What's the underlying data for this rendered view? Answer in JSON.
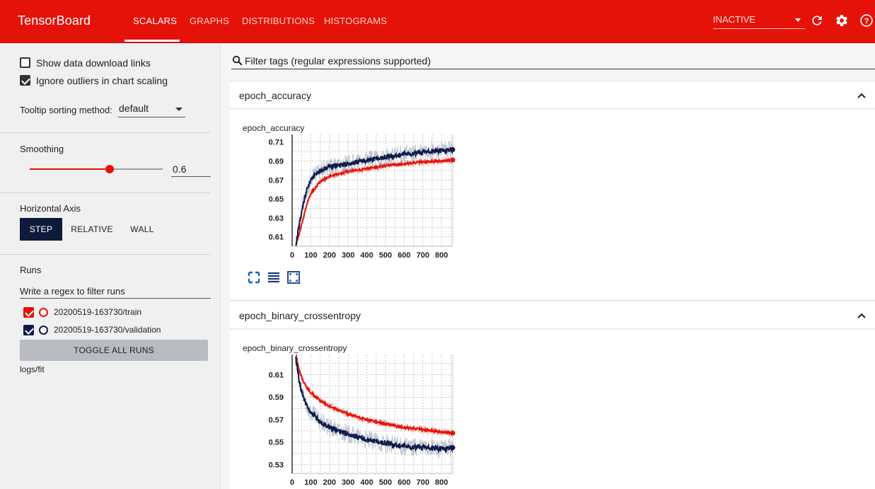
{
  "header": {
    "brand": "TensorBoard",
    "tabs": [
      {
        "label": "SCALARS",
        "active": true
      },
      {
        "label": "GRAPHS",
        "active": false
      },
      {
        "label": "DISTRIBUTIONS",
        "active": false
      },
      {
        "label": "HISTOGRAMS",
        "active": false
      }
    ],
    "run_state": "INACTIVE",
    "icons": [
      "refresh-icon",
      "settings-icon",
      "help-icon"
    ],
    "accent_color": "#e5120a"
  },
  "sidebar": {
    "show_download_links": {
      "label": "Show data download links",
      "checked": false
    },
    "ignore_outliers": {
      "label": "Ignore outliers in chart scaling",
      "checked": true
    },
    "tooltip_sorting": {
      "label": "Tooltip sorting method:",
      "value": "default"
    },
    "smoothing": {
      "label": "Smoothing",
      "value": "0.6",
      "fraction": 0.6
    },
    "horizontal_axis": {
      "label": "Horizontal Axis",
      "options": [
        "STEP",
        "RELATIVE",
        "WALL"
      ],
      "selected": "STEP"
    },
    "runs": {
      "label": "Runs",
      "regex_placeholder": "Write a regex to filter runs",
      "items": [
        {
          "name": "20200519-163730/train",
          "checked": true,
          "color": "#e5120a"
        },
        {
          "name": "20200519-163730/validation",
          "checked": true,
          "color": "#0d1a4a"
        }
      ],
      "toggle_all": "TOGGLE ALL RUNS",
      "logdir": "logs/fit"
    }
  },
  "main": {
    "filter_placeholder": "Filter tags (regular expressions supported)",
    "cards": [
      {
        "header": "epoch_accuracy",
        "chart_title": "epoch_accuracy"
      },
      {
        "header": "epoch_binary_crossentropy",
        "chart_title": "epoch_binary_crossentropy"
      }
    ]
  },
  "chart_data": [
    {
      "type": "line",
      "title": "epoch_accuracy",
      "xlim": [
        0,
        860
      ],
      "ylim": [
        0.6,
        0.718
      ],
      "x_ticks": [
        0,
        100,
        200,
        300,
        400,
        500,
        600,
        700,
        800
      ],
      "y_ticks": [
        0.61,
        0.63,
        0.65,
        0.67,
        0.69,
        0.71
      ],
      "y_tick_labels": [
        "0.61",
        "0.63",
        "0.65",
        "0.67",
        "0.69",
        "0.71"
      ],
      "grid": true,
      "series": [
        {
          "color": "#e5120a",
          "points": [
            [
              20,
              0.601
            ],
            [
              40,
              0.615
            ],
            [
              60,
              0.63
            ],
            [
              80,
              0.645
            ],
            [
              100,
              0.656
            ],
            [
              150,
              0.668
            ],
            [
              200,
              0.674
            ],
            [
              300,
              0.679
            ],
            [
              400,
              0.682
            ],
            [
              500,
              0.685
            ],
            [
              600,
              0.687
            ],
            [
              700,
              0.689
            ],
            [
              800,
              0.69
            ],
            [
              860,
              0.691
            ]
          ]
        },
        {
          "color": "#0d1a4a",
          "points": [
            [
              20,
              0.601
            ],
            [
              40,
              0.625
            ],
            [
              60,
              0.645
            ],
            [
              80,
              0.66
            ],
            [
              100,
              0.67
            ],
            [
              150,
              0.68
            ],
            [
              200,
              0.684
            ],
            [
              300,
              0.687
            ],
            [
              400,
              0.691
            ],
            [
              500,
              0.694
            ],
            [
              600,
              0.697
            ],
            [
              700,
              0.699
            ],
            [
              800,
              0.701
            ],
            [
              860,
              0.702
            ]
          ]
        }
      ]
    },
    {
      "type": "line",
      "title": "epoch_binary_crossentropy",
      "xlim": [
        0,
        860
      ],
      "ylim": [
        0.522,
        0.628
      ],
      "x_ticks": [
        0,
        100,
        200,
        300,
        400,
        500,
        600,
        700,
        800
      ],
      "y_ticks": [
        0.53,
        0.55,
        0.57,
        0.59,
        0.61
      ],
      "y_tick_labels": [
        "0.53",
        "0.55",
        "0.57",
        "0.59",
        "0.61"
      ],
      "grid": true,
      "series": [
        {
          "color": "#e5120a",
          "points": [
            [
              20,
              0.628
            ],
            [
              40,
              0.613
            ],
            [
              60,
              0.604
            ],
            [
              80,
              0.598
            ],
            [
              100,
              0.594
            ],
            [
              150,
              0.587
            ],
            [
              200,
              0.582
            ],
            [
              300,
              0.575
            ],
            [
              400,
              0.57
            ],
            [
              500,
              0.566
            ],
            [
              600,
              0.563
            ],
            [
              700,
              0.561
            ],
            [
              800,
              0.559
            ],
            [
              860,
              0.558
            ]
          ]
        },
        {
          "color": "#0d1a4a",
          "points": [
            [
              20,
              0.625
            ],
            [
              40,
              0.602
            ],
            [
              60,
              0.59
            ],
            [
              80,
              0.582
            ],
            [
              100,
              0.576
            ],
            [
              150,
              0.568
            ],
            [
              200,
              0.563
            ],
            [
              300,
              0.557
            ],
            [
              400,
              0.552
            ],
            [
              500,
              0.549
            ],
            [
              600,
              0.546
            ],
            [
              700,
              0.545
            ],
            [
              800,
              0.544
            ],
            [
              860,
              0.545
            ]
          ]
        }
      ]
    }
  ]
}
